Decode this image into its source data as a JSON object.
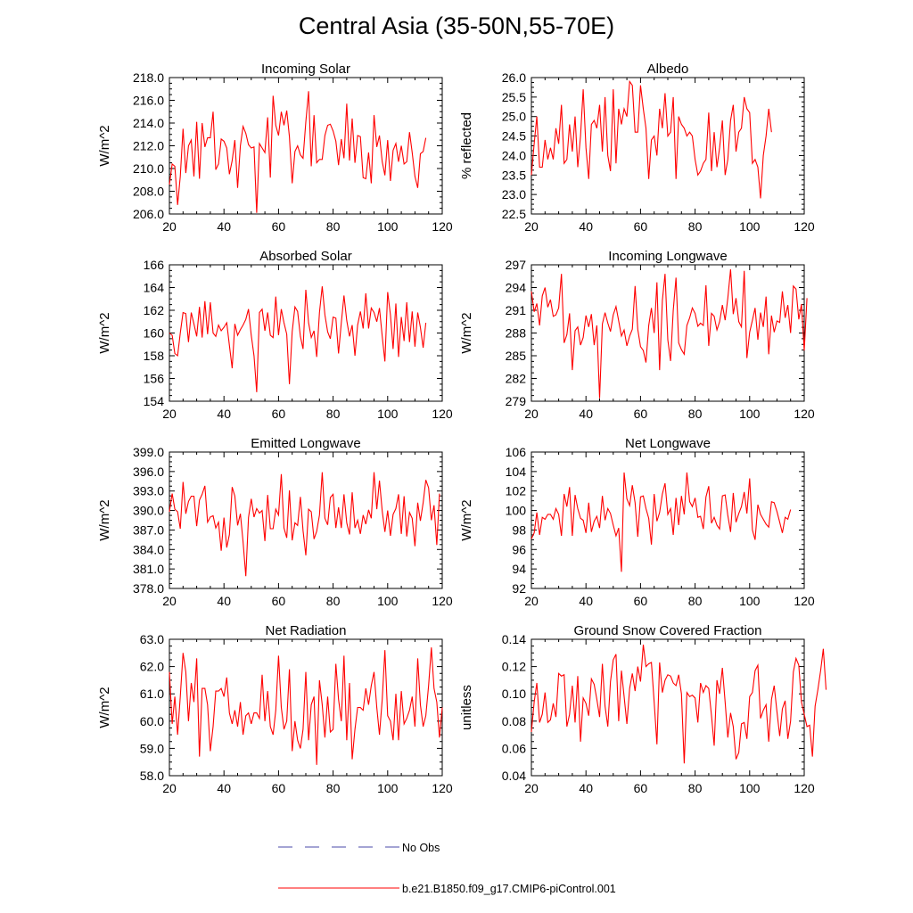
{
  "title": "Central Asia (35-50N,55-70E)",
  "colors": {
    "model": "#ff0000",
    "obs": "#4a4aaa",
    "axis": "#000000"
  },
  "legend": [
    {
      "label": "No Obs",
      "style": "dashed",
      "color": "#4a4aaa"
    },
    {
      "label": "b.e21.B1850.f09_g17.CMIP6-piControl.001",
      "style": "solid",
      "color": "#ff0000"
    }
  ],
  "chart_data": [
    {
      "type": "line",
      "title": "Incoming Solar",
      "ylabel": "W/m^2",
      "xlim": [
        20,
        120
      ],
      "ylim": [
        206,
        218
      ],
      "xticks": [
        20,
        40,
        60,
        80,
        100,
        120
      ],
      "yticks": [
        206,
        208,
        210,
        212,
        214,
        216,
        218
      ],
      "ytick_labels": [
        "206.0",
        "208.0",
        "210.0",
        "212.0",
        "214.0",
        "216.0",
        "218.0"
      ],
      "x_start": 20,
      "values": [
        208.6,
        210.4,
        210.2,
        206.8,
        209.3,
        213.5,
        209.6,
        212,
        212.5,
        209.3,
        214.1,
        209.1,
        214,
        211.9,
        212.7,
        212.7,
        215,
        209.9,
        210.4,
        212.6,
        212.4,
        211.8,
        209.5,
        210.7,
        212.5,
        208.3,
        212,
        213.7,
        213.1,
        212.1,
        211.8,
        211.9,
        206.1,
        212.2,
        211.8,
        211.4,
        214.5,
        209.2,
        216.4,
        213.8,
        212.9,
        215,
        213.8,
        215.1,
        212.8,
        208.7,
        211.5,
        212,
        211.2,
        210.9,
        214.1,
        216.8,
        210.2,
        214.7,
        210.5,
        210.8,
        210.8,
        212.9,
        213.8,
        213.9,
        213.3,
        212.4,
        210.3,
        212.6,
        210.9,
        215.7,
        210.7,
        214.4,
        210.5,
        212.9,
        212.8,
        209.2,
        209.1,
        211.4,
        208.7,
        214.7,
        211.9,
        212.9,
        210.6,
        209.4,
        212.5,
        208.9,
        211.6,
        212.2,
        210.6,
        212,
        210.4,
        210.6,
        213.2,
        211.4,
        209.3,
        208.3,
        211.3,
        211.5,
        212.7
      ]
    },
    {
      "type": "line",
      "title": "Albedo",
      "ylabel": "% reflected",
      "xlim": [
        20,
        120
      ],
      "ylim": [
        22.5,
        26
      ],
      "xticks": [
        20,
        40,
        60,
        80,
        100,
        120
      ],
      "yticks": [
        22.5,
        23,
        23.5,
        24,
        24.5,
        25,
        25.5,
        26
      ],
      "ytick_labels": [
        "22.5",
        "23.0",
        "23.5",
        "24.0",
        "24.5",
        "25.0",
        "25.5",
        "26.0"
      ],
      "x_start": 20,
      "values": [
        23.5,
        24.3,
        25,
        23.7,
        23.7,
        24.4,
        23.9,
        24.2,
        23.9,
        24.7,
        24.3,
        25.3,
        23.8,
        23.9,
        24.8,
        24.1,
        25,
        23.7,
        24.5,
        25.7,
        24.2,
        23.4,
        24.8,
        24.9,
        24.7,
        25.3,
        24.1,
        25.5,
        24,
        23.6,
        25.7,
        23.8,
        25.2,
        24.8,
        25.2,
        25,
        25.9,
        25.8,
        24.6,
        24.6,
        25.8,
        25.2,
        24.7,
        23.4,
        24.4,
        24.5,
        24,
        25.2,
        24.7,
        25.6,
        24.5,
        24.6,
        25.5,
        23.4,
        25,
        24.8,
        24.7,
        24.5,
        24.6,
        24.5,
        23.9,
        23.5,
        23.6,
        23.8,
        23.9,
        25.1,
        23.6,
        24.6,
        23.7,
        24.2,
        24.9,
        23.5,
        23.9,
        24.9,
        25.3,
        24.1,
        24.6,
        24.7,
        25.5,
        25.2,
        25.1,
        23.8,
        23.9,
        23.7,
        22.9,
        24,
        24.5,
        25.2,
        24.6
      ]
    },
    {
      "type": "line",
      "title": "Absorbed Solar",
      "ylabel": "W/m^2",
      "xlim": [
        20,
        120
      ],
      "ylim": [
        154,
        166
      ],
      "xticks": [
        20,
        40,
        60,
        80,
        100,
        120
      ],
      "yticks": [
        154,
        156,
        158,
        160,
        162,
        164,
        166
      ],
      "ytick_labels": [
        "154",
        "156",
        "158",
        "160",
        "162",
        "164",
        "166"
      ],
      "x_start": 20,
      "values": [
        160,
        159.8,
        158.2,
        158,
        160,
        161.8,
        161.7,
        159.2,
        161.8,
        160.8,
        159.7,
        162.3,
        159.6,
        162.8,
        159.9,
        162.7,
        160,
        159.7,
        160.7,
        160.2,
        160.5,
        160.9,
        158.9,
        156.9,
        160.8,
        159.8,
        160.3,
        160.7,
        161.2,
        162.1,
        159.8,
        158,
        154.8,
        161.8,
        162.1,
        160.2,
        161.8,
        159.8,
        159.6,
        163.2,
        159.8,
        162.1,
        160.9,
        159.9,
        155.5,
        160.1,
        162.3,
        161.9,
        159.7,
        158.6,
        163.8,
        160.9,
        159.6,
        160.2,
        157.9,
        161.8,
        164.1,
        161.6,
        160.1,
        159.5,
        161.4,
        161.3,
        158.2,
        160.9,
        163.3,
        161.1,
        159.7,
        160.7,
        158,
        160.7,
        161.9,
        160.4,
        163.5,
        160.4,
        162.2,
        161.8,
        161,
        162.2,
        159.7,
        157.5,
        163.6,
        161.6,
        158.6,
        162.6,
        157.9,
        161.4,
        159.3,
        162.7,
        159.2,
        161.9,
        158.8,
        161.8,
        160.5,
        158.7,
        160.9
      ]
    },
    {
      "type": "line",
      "title": "Incoming Longwave",
      "ylabel": "W/m^2",
      "xlim": [
        20,
        120
      ],
      "ylim": [
        279,
        297
      ],
      "xticks": [
        20,
        40,
        60,
        80,
        100,
        120
      ],
      "yticks": [
        279,
        282,
        285,
        288,
        291,
        294,
        297
      ],
      "ytick_labels": [
        "279",
        "282",
        "285",
        "288",
        "291",
        "294",
        "297"
      ],
      "x_start": 20,
      "values": [
        293.5,
        290.8,
        291.9,
        289,
        292.9,
        294,
        291.4,
        292.4,
        290.2,
        290.4,
        291.3,
        295.8,
        286.7,
        287.8,
        290.6,
        283.1,
        288.3,
        288.8,
        286.4,
        287.4,
        290.3,
        288.8,
        290.5,
        286.4,
        289,
        279.4,
        289.2,
        290.7,
        289.3,
        288.2,
        290.4,
        291.5,
        289.6,
        287.6,
        288.4,
        286.3,
        287.6,
        288.5,
        294.2,
        288.5,
        286.2,
        285.7,
        284.1,
        289,
        291.3,
        288,
        294.7,
        283.1,
        292.3,
        295.8,
        287.1,
        284.3,
        291,
        295.3,
        286.7,
        285.8,
        285.2,
        289,
        290,
        291.3,
        290.6,
        288.9,
        289.3,
        289,
        294.3,
        286.3,
        290.6,
        290.2,
        288.4,
        289.5,
        291.7,
        289.7,
        292.6,
        296.4,
        290.5,
        292.6,
        289.5,
        288.8,
        296.2,
        284.7,
        288.1,
        289.7,
        291.3,
        287.1,
        290.7,
        288.8,
        292.8,
        285.2,
        290.3,
        288.1,
        289.6,
        289.4,
        293.5,
        290,
        291.7,
        288,
        294.2,
        293.8,
        289.8,
        291.8,
        285.7,
        292.6
      ]
    },
    {
      "type": "line",
      "title": "Emitted Longwave",
      "ylabel": "W/m^2",
      "xlim": [
        20,
        120
      ],
      "ylim": [
        378,
        399
      ],
      "xticks": [
        20,
        40,
        60,
        80,
        100,
        120
      ],
      "yticks": [
        378,
        381,
        384,
        387,
        390,
        393,
        396,
        399
      ],
      "ytick_labels": [
        "378.0",
        "381.0",
        "384.0",
        "387.0",
        "390.0",
        "393.0",
        "396.0",
        "399.0"
      ],
      "x_start": 20,
      "values": [
        389.8,
        392.6,
        390.2,
        389.8,
        387.2,
        394.4,
        389.5,
        391.4,
        392.2,
        392.2,
        387.6,
        391.6,
        392.5,
        393.8,
        388.2,
        389,
        389.2,
        387.3,
        388.2,
        383.8,
        388.9,
        384.3,
        386.3,
        393.6,
        392.2,
        387.7,
        389.5,
        385.2,
        379.9,
        388.9,
        391.8,
        389,
        390.3,
        389.6,
        390,
        385.3,
        392.4,
        387.2,
        387.2,
        390.2,
        389.3,
        395.6,
        387.3,
        385.8,
        393.1,
        385.4,
        388.1,
        387.7,
        392.1,
        386.9,
        383.1,
        390.2,
        389.8,
        385.6,
        386.8,
        389.3,
        395.9,
        388.8,
        387.8,
        392,
        392.5,
        387.3,
        390.5,
        387.3,
        392.5,
        388.1,
        386.3,
        392.8,
        387.3,
        388.5,
        386.4,
        389.3,
        387.9,
        390.1,
        388.8,
        395.9,
        390.2,
        394.6,
        389.9,
        386.7,
        390,
        386.1,
        389.4,
        390.3,
        392.5,
        386.4,
        392.2,
        386,
        389.7,
        388.8,
        384.5,
        391.2,
        388.4,
        391.2,
        394.7,
        393.5,
        388.5,
        390.8,
        384.7,
        392.6
      ]
    },
    {
      "type": "line",
      "title": "Net Longwave",
      "ylabel": "W/m^2",
      "xlim": [
        20,
        120
      ],
      "ylim": [
        92,
        106
      ],
      "xticks": [
        20,
        40,
        60,
        80,
        100,
        120
      ],
      "yticks": [
        92,
        94,
        96,
        98,
        100,
        102,
        104,
        106
      ],
      "ytick_labels": [
        "92",
        "94",
        "96",
        "98",
        "100",
        "102",
        "104",
        "106"
      ],
      "x_start": 20,
      "values": [
        97.1,
        97.7,
        99.8,
        97.5,
        99.3,
        99.1,
        99.6,
        99.6,
        99.1,
        100.2,
        99.6,
        97.4,
        101.7,
        100.4,
        102.4,
        97.4,
        101.6,
        100.2,
        99.2,
        99,
        97.7,
        100.8,
        97.8,
        98.9,
        99.4,
        98.2,
        101.5,
        99,
        100.2,
        99.7,
        98.5,
        97.4,
        98.2,
        93.7,
        103.9,
        101.2,
        100.5,
        102.6,
        100.8,
        97.3,
        101.4,
        101.5,
        100.2,
        99.2,
        96.5,
        101.7,
        98.9,
        99.8,
        101.7,
        102.8,
        99.6,
        100.2,
        97.5,
        101.3,
        98.5,
        101.5,
        99.6,
        103.9,
        100.9,
        100.4,
        101.3,
        99.3,
        99.4,
        98.1,
        101.4,
        102.5,
        98.7,
        99.3,
        98.5,
        98.1,
        101.5,
        101.6,
        99.5,
        97.8,
        101.8,
        98.8,
        99.7,
        100.4,
        101.9,
        99.7,
        103.3,
        98,
        97,
        100.6,
        99.6,
        99.1,
        98.6,
        98.3,
        100.9,
        100.8,
        99.9,
        98.8,
        97.7,
        99.3,
        99.1,
        100.1
      ]
    },
    {
      "type": "line",
      "title": "Net Radiation",
      "ylabel": "W/m^2",
      "xlim": [
        20,
        120
      ],
      "ylim": [
        58,
        63
      ],
      "xticks": [
        20,
        40,
        60,
        80,
        100,
        120
      ],
      "yticks": [
        58,
        59,
        60,
        61,
        62,
        63
      ],
      "ytick_labels": [
        "58.0",
        "59.0",
        "60.0",
        "61.0",
        "62.0",
        "63.0"
      ],
      "x_start": 20,
      "values": [
        61.8,
        59.9,
        60.9,
        59.5,
        60.9,
        62.5,
        61.8,
        60,
        61.4,
        60.7,
        62.3,
        58.7,
        61.2,
        61.2,
        60.6,
        58.9,
        59.8,
        61.1,
        61.1,
        61.2,
        60.9,
        61.6,
        60.3,
        59.9,
        60.4,
        59.8,
        60.7,
        59.5,
        60.2,
        60.3,
        59.9,
        60.3,
        60.3,
        60.1,
        61.7,
        60,
        61.1,
        59.8,
        59.5,
        60.4,
        62.4,
        60.5,
        59.7,
        60,
        61.9,
        58.9,
        60,
        59.3,
        59,
        59.7,
        61.8,
        59.3,
        60.6,
        60.9,
        58.4,
        61.5,
        60.6,
        59.4,
        60.9,
        59.6,
        59.7,
        62.1,
        60.8,
        60,
        62.4,
        59.3,
        61.4,
        58.6,
        59.7,
        60.5,
        60.5,
        60.4,
        61.2,
        60.6,
        61.3,
        61.8,
        60.5,
        59.5,
        60.8,
        62.6,
        60.2,
        60,
        59.3,
        61,
        59.3,
        61.1,
        59.9,
        60.1,
        60.4,
        60.9,
        59.8,
        62.3,
        60.6,
        59.8,
        60.2,
        61.3,
        62.7,
        61.2,
        60.7,
        59.4,
        60.5
      ]
    },
    {
      "type": "line",
      "title": "Ground Snow Covered Fraction",
      "ylabel": "unitless",
      "xlim": [
        20,
        120
      ],
      "ylim": [
        0.04,
        0.14
      ],
      "xticks": [
        20,
        40,
        60,
        80,
        100,
        120
      ],
      "yticks": [
        0.04,
        0.06,
        0.08,
        0.1,
        0.12,
        0.14
      ],
      "ytick_labels": [
        "0.04",
        "0.06",
        "0.08",
        "0.10",
        "0.12",
        "0.14"
      ],
      "x_start": 20,
      "values": [
        0.072,
        0.094,
        0.108,
        0.079,
        0.085,
        0.101,
        0.079,
        0.081,
        0.093,
        0.083,
        0.115,
        0.113,
        0.114,
        0.076,
        0.085,
        0.106,
        0.079,
        0.113,
        0.065,
        0.097,
        0.093,
        0.084,
        0.111,
        0.107,
        0.096,
        0.083,
        0.122,
        0.091,
        0.076,
        0.109,
        0.125,
        0.129,
        0.08,
        0.117,
        0.098,
        0.078,
        0.104,
        0.115,
        0.102,
        0.12,
        0.109,
        0.136,
        0.12,
        0.122,
        0.123,
        0.094,
        0.063,
        0.123,
        0.101,
        0.11,
        0.114,
        0.113,
        0.108,
        0.106,
        0.114,
        0.1,
        0.049,
        0.101,
        0.098,
        0.099,
        0.097,
        0.079,
        0.108,
        0.101,
        0.106,
        0.104,
        0.084,
        0.062,
        0.11,
        0.1,
        0.119,
        0.094,
        0.068,
        0.086,
        0.076,
        0.052,
        0.057,
        0.078,
        0.079,
        0.067,
        0.098,
        0.101,
        0.117,
        0.121,
        0.082,
        0.088,
        0.092,
        0.065,
        0.096,
        0.106,
        0.087,
        0.069,
        0.089,
        0.095,
        0.067,
        0.08,
        0.116,
        0.126,
        0.121,
        0.094,
        0.085,
        0.076,
        0.077,
        0.054,
        0.091,
        0.103,
        0.117,
        0.133,
        0.103
      ]
    }
  ]
}
